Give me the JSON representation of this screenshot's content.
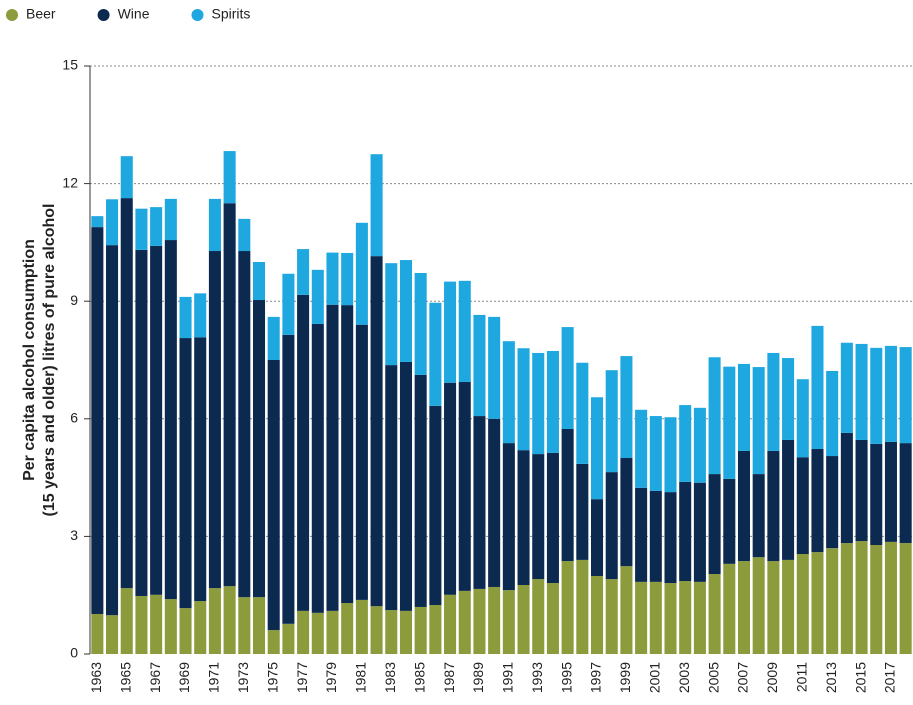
{
  "chart_data": {
    "type": "stacked_bar",
    "y_label": [
      "Per capita alcohol consumption",
      "(15 years and older) litres of pure alcohol"
    ],
    "categories": [
      "1963",
      null,
      "1965",
      null,
      "1967",
      null,
      "1969",
      null,
      "1971",
      null,
      "1973",
      null,
      "1975",
      null,
      "1977",
      null,
      "1979",
      null,
      "1981",
      null,
      "1983",
      null,
      "1985",
      null,
      "1987",
      null,
      "1989",
      null,
      "1991",
      null,
      "1993",
      null,
      "1995",
      null,
      "1997",
      null,
      "1999",
      null,
      "2001",
      null,
      "2003",
      null,
      "2005",
      null,
      "2007",
      null,
      "2009",
      null,
      "2011",
      null,
      "2013",
      null,
      "2015",
      null,
      "2017",
      null
    ],
    "series": [
      {
        "name": "Beer",
        "color": "#8c9c3c",
        "values": [
          1.02,
          0.99,
          1.68,
          1.48,
          1.51,
          1.4,
          1.17,
          1.35,
          1.68,
          1.73,
          1.45,
          1.45,
          0.61,
          0.77,
          1.1,
          1.05,
          1.1,
          1.3,
          1.38,
          1.22,
          1.12,
          1.1,
          1.2,
          1.25,
          1.51,
          1.61,
          1.66,
          1.71,
          1.63,
          1.76,
          1.91,
          1.81,
          2.37,
          2.4,
          1.99,
          1.91,
          2.24,
          1.84,
          1.84,
          1.81,
          1.86,
          1.84,
          2.04,
          2.3,
          2.37,
          2.47,
          2.37,
          2.4,
          2.55,
          2.6,
          2.7,
          2.83,
          2.88,
          2.78,
          2.86,
          2.83
        ]
      },
      {
        "name": "Wine",
        "color": "#0c2a50",
        "values": [
          9.87,
          9.44,
          9.95,
          8.83,
          8.9,
          9.16,
          6.89,
          6.73,
          8.6,
          9.77,
          8.83,
          7.58,
          6.89,
          7.37,
          8.06,
          7.37,
          7.81,
          7.6,
          7.02,
          8.93,
          6.25,
          6.35,
          5.92,
          5.08,
          5.41,
          5.33,
          4.41,
          4.29,
          3.75,
          3.44,
          3.19,
          3.32,
          3.37,
          2.45,
          1.96,
          2.73,
          2.76,
          2.4,
          2.32,
          2.32,
          2.53,
          2.53,
          2.55,
          2.17,
          2.81,
          2.12,
          2.81,
          3.06,
          2.47,
          2.63,
          2.35,
          2.81,
          2.58,
          2.58,
          2.55,
          2.55
        ]
      },
      {
        "name": "Spirits",
        "color": "#1fa8e0",
        "values": [
          0.28,
          1.17,
          1.07,
          1.05,
          0.99,
          1.05,
          1.05,
          1.12,
          1.33,
          1.33,
          0.82,
          0.97,
          1.1,
          1.56,
          1.17,
          1.38,
          1.33,
          1.33,
          2.6,
          2.6,
          2.6,
          2.6,
          2.6,
          2.63,
          2.58,
          2.58,
          2.58,
          2.6,
          2.6,
          2.6,
          2.58,
          2.6,
          2.6,
          2.58,
          2.6,
          2.6,
          2.6,
          1.99,
          1.91,
          1.91,
          1.96,
          1.91,
          2.98,
          2.86,
          2.22,
          2.73,
          2.5,
          2.09,
          1.99,
          3.14,
          2.17,
          2.3,
          2.45,
          2.45,
          2.45,
          2.45
        ]
      }
    ],
    "ylim": [
      0,
      15
    ],
    "yticks": [
      0,
      3,
      6,
      9,
      12,
      15
    ],
    "grid": true,
    "legend": "top-left"
  }
}
